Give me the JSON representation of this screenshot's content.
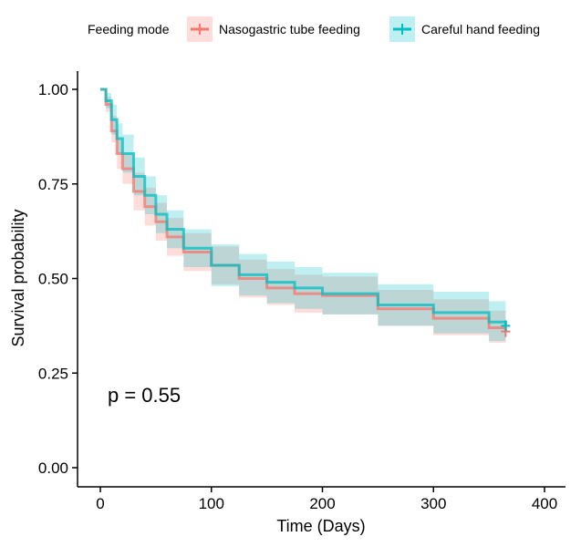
{
  "chart_data": {
    "type": "line",
    "xlabel": "Time (Days)",
    "ylabel": "Survival probability",
    "xlim": [
      0,
      400
    ],
    "ylim": [
      0,
      1
    ],
    "xticks": [
      "0",
      "100",
      "200",
      "300",
      "400"
    ],
    "yticks": [
      "0.00",
      "0.25",
      "0.50",
      "0.75",
      "1.00"
    ],
    "grid": false,
    "annotation": "p = 0.55",
    "legend": {
      "title": "Feeding mode",
      "placement": "top"
    },
    "x": [
      0,
      5,
      10,
      15,
      20,
      30,
      40,
      50,
      60,
      75,
      100,
      125,
      150,
      175,
      200,
      250,
      300,
      350,
      365
    ],
    "series": [
      {
        "name": "Nasogastric tube feeding",
        "color": "#F8766D",
        "values": [
          1.0,
          0.96,
          0.89,
          0.83,
          0.79,
          0.73,
          0.69,
          0.65,
          0.61,
          0.57,
          0.535,
          0.5,
          0.475,
          0.46,
          0.455,
          0.42,
          0.395,
          0.37,
          0.36
        ],
        "lower": [
          1.0,
          0.94,
          0.86,
          0.79,
          0.75,
          0.68,
          0.64,
          0.6,
          0.56,
          0.52,
          0.485,
          0.45,
          0.43,
          0.41,
          0.405,
          0.375,
          0.35,
          0.33,
          0.32
        ],
        "upper": [
          1.0,
          0.98,
          0.93,
          0.87,
          0.83,
          0.78,
          0.74,
          0.7,
          0.66,
          0.62,
          0.585,
          0.55,
          0.525,
          0.51,
          0.505,
          0.47,
          0.445,
          0.415,
          0.405
        ]
      },
      {
        "name": "Careful hand feeding",
        "color": "#00BFC4",
        "values": [
          1.0,
          0.97,
          0.92,
          0.87,
          0.83,
          0.77,
          0.72,
          0.67,
          0.63,
          0.58,
          0.535,
          0.51,
          0.49,
          0.475,
          0.46,
          0.43,
          0.41,
          0.385,
          0.375
        ],
        "lower": [
          1.0,
          0.95,
          0.88,
          0.83,
          0.78,
          0.72,
          0.67,
          0.62,
          0.58,
          0.53,
          0.48,
          0.455,
          0.435,
          0.42,
          0.405,
          0.375,
          0.355,
          0.335,
          0.325
        ],
        "upper": [
          1.0,
          0.99,
          0.96,
          0.91,
          0.88,
          0.82,
          0.77,
          0.72,
          0.68,
          0.63,
          0.59,
          0.565,
          0.545,
          0.53,
          0.515,
          0.485,
          0.465,
          0.44,
          0.43
        ]
      }
    ]
  }
}
